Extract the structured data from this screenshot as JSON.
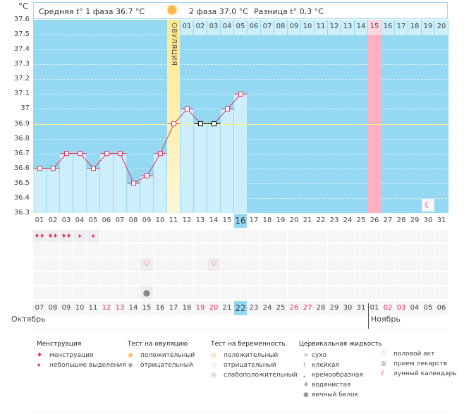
{
  "unit": "°C",
  "header": {
    "phase1": "Средняя t° 1 фаза 36.7 °C",
    "phase2": "2 фаза 37.0 °C",
    "diff": "Разница t° 0.3 °C"
  },
  "ovulation_label": "ОВУЛЯЦИЯ",
  "y_ticks": [
    "37.6",
    "37.5",
    "37.4",
    "37.3",
    "37.2",
    "37.1",
    "37",
    "36.9",
    "36.8",
    "36.7",
    "36.6",
    "36.5",
    "36.4",
    "36.3"
  ],
  "chart_data": {
    "type": "line",
    "ylim": [
      36.3,
      37.6
    ],
    "coverline": 36.9,
    "ovulation_day": 11,
    "x": [
      1,
      2,
      3,
      4,
      5,
      6,
      7,
      8,
      9,
      10,
      11,
      12,
      13,
      14,
      15,
      16
    ],
    "values": [
      36.6,
      36.6,
      36.7,
      36.7,
      36.6,
      36.7,
      36.7,
      36.5,
      36.55,
      36.7,
      36.9,
      37.0,
      36.9,
      36.9,
      37.0,
      37.1
    ]
  },
  "phase2_days": [
    "01",
    "02",
    "03",
    "04",
    "05",
    "06",
    "07",
    "08",
    "09",
    "10",
    "11",
    "12",
    "13",
    "14",
    "15",
    "16",
    "17",
    "18",
    "19",
    "20"
  ],
  "phase2_highlight": "15",
  "cycle_days": [
    "01",
    "02",
    "03",
    "04",
    "05",
    "06",
    "07",
    "08",
    "09",
    "10",
    "11",
    "12",
    "13",
    "14",
    "15",
    "16",
    "17",
    "18",
    "19",
    "20",
    "21",
    "22",
    "23",
    "24",
    "25",
    "26",
    "27",
    "28",
    "29",
    "30",
    "31"
  ],
  "current_cycle_day": "16",
  "dates": [
    "07",
    "08",
    "09",
    "10",
    "11",
    "12",
    "13",
    "14",
    "15",
    "16",
    "17",
    "18",
    "19",
    "20",
    "21",
    "22",
    "23",
    "24",
    "25",
    "26",
    "27",
    "28",
    "29",
    "30",
    "31",
    "01",
    "02",
    "03",
    "04",
    "05",
    "06"
  ],
  "red_dates": [
    5,
    6,
    12,
    13,
    19,
    20,
    26,
    27
  ],
  "today_index": 15,
  "months": {
    "first": "Октябрь",
    "second": "Ноябрь"
  },
  "marks": {
    "menstruation_heavy": [
      1,
      2,
      3
    ],
    "menstruation_light": [
      4,
      5
    ],
    "intercourse": [
      9,
      14
    ],
    "egg_white": [
      9
    ],
    "moon": [
      30
    ]
  },
  "colors": {
    "plot": "#94d8f2",
    "bar": "#cdeefb",
    "ovulation": "#fde98a",
    "line": "#e8305e",
    "highlight": "#ffb0c0"
  },
  "legend": {
    "menstruation": {
      "title": "Менструация",
      "items": [
        "менструация",
        "небольшие выделения"
      ]
    },
    "ovulation_test": {
      "title": "Тест на овуляцию",
      "items": [
        "положительный",
        "отрицательный"
      ]
    },
    "pregnancy_test": {
      "title": "Тест на беременность",
      "items": [
        "положительный",
        "отрицательный",
        "слабоположительный"
      ]
    },
    "cervical": {
      "title": "Цервикальная жидкость",
      "items": [
        "сухо",
        "клейкая",
        "кремообразная",
        "водянистая",
        "яичный белок"
      ]
    },
    "other": {
      "items": [
        "половой акт",
        "прием лекарств",
        "лунный календарь"
      ]
    }
  }
}
